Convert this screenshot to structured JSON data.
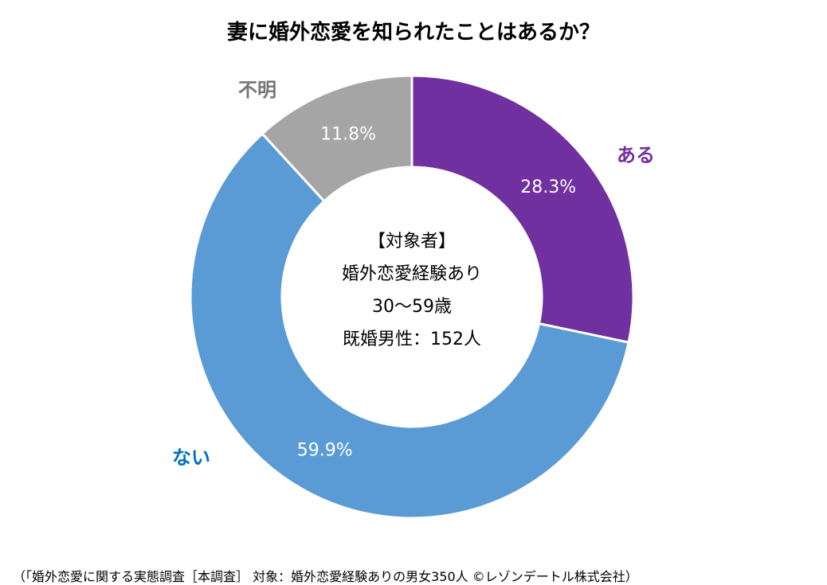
{
  "chart_data": {
    "type": "pie",
    "title": "妻に婚外恋愛を知られたことはあるか？",
    "series": [
      {
        "name": "ある",
        "value": 28.3,
        "label": "28.3%",
        "color": "#7030A0",
        "label_color": "#7030A0"
      },
      {
        "name": "ない",
        "value": 59.9,
        "label": "59.9%",
        "color": "#5B9BD5",
        "label_color": "#0070C0"
      },
      {
        "name": "不明",
        "value": 11.8,
        "label": "11.8%",
        "color": "#A5A5A5",
        "label_color": "#767676"
      }
    ],
    "center_text": [
      "【対象者】",
      "婚外恋愛経験あり",
      "30〜59歳",
      "既婚男性：152人"
    ],
    "legend": "none"
  },
  "footer": "（「婚外恋愛に関する実態調査［本調査］ 対象：婚外恋愛経験ありの男女350人 ©レゾンデートル株式会社）"
}
